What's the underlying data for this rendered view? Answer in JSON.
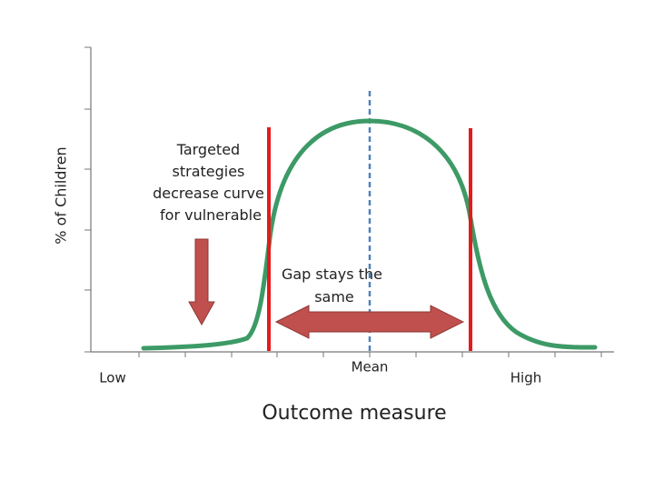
{
  "axes": {
    "y_label": "% of Children",
    "x_label": "Outcome measure",
    "x_labels": [
      "Low",
      "Mean",
      "High"
    ]
  },
  "annotations": [
    {
      "lines": [
        "Targeted",
        "strategies",
        "decrease curve",
        "for vulnerable"
      ]
    },
    {
      "lines": [
        "Gap stays the",
        "same"
      ]
    }
  ]
}
